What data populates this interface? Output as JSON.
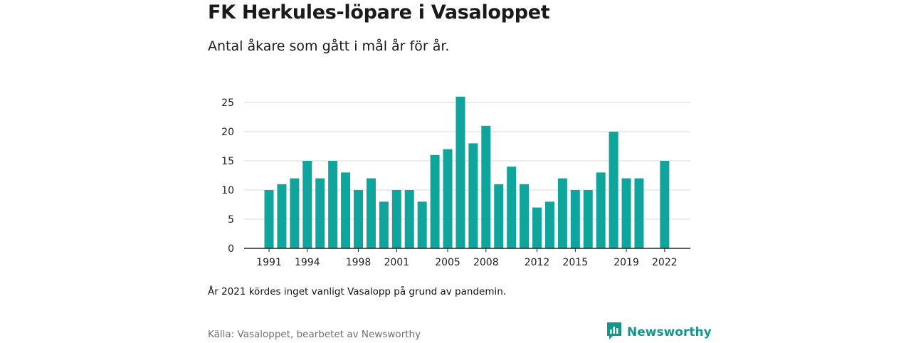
{
  "header": {
    "title": "FK Herkules-löpare i Vasaloppet",
    "subtitle": "Antal åkare som gått i mål år för år."
  },
  "footer": {
    "note": "År 2021 kördes inget vanligt Vasalopp på grund av pandemin.",
    "source": "Källa: Vasaloppet, bearbetet av Newsworthy",
    "logo_text": "Newsworthy"
  },
  "colors": {
    "bar": "#0fa59c",
    "brand": "#14968c",
    "grid": "#d9d9d9",
    "axis": "#222222"
  },
  "chart_data": {
    "type": "bar",
    "title": "",
    "xlabel": "",
    "ylabel": "",
    "ylim": [
      0,
      27
    ],
    "yticks": [
      0,
      5,
      10,
      15,
      20,
      25
    ],
    "grid": true,
    "categories": [
      1991,
      1992,
      1993,
      1994,
      1995,
      1996,
      1997,
      1998,
      1999,
      2000,
      2001,
      2002,
      2003,
      2004,
      2005,
      2006,
      2007,
      2008,
      2009,
      2010,
      2011,
      2012,
      2013,
      2014,
      2015,
      2016,
      2017,
      2018,
      2019,
      2020,
      2021,
      2022
    ],
    "values": [
      10,
      11,
      12,
      15,
      12,
      15,
      13,
      10,
      12,
      8,
      10,
      10,
      8,
      16,
      17,
      26,
      18,
      21,
      11,
      14,
      11,
      7,
      8,
      12,
      10,
      10,
      13,
      20,
      12,
      12,
      null,
      15
    ],
    "xtick_labels": [
      "1991",
      "1994",
      "1998",
      "2001",
      "2005",
      "2008",
      "2012",
      "2015",
      "2019",
      "2022"
    ]
  }
}
